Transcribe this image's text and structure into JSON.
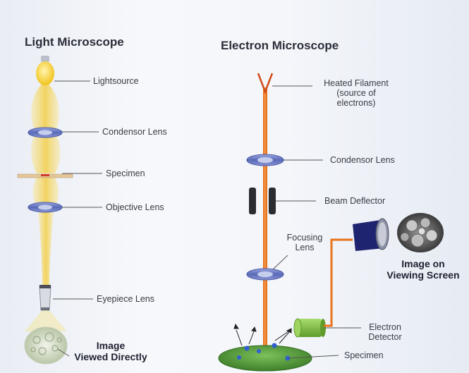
{
  "light": {
    "title": "Light Microscope",
    "lightsource": "Lightsource",
    "condensor": "Condensor Lens",
    "specimen": "Specimen",
    "objective": "Objective Lens",
    "eyepiece": "Eyepiece Lens",
    "image_l1": "Image",
    "image_l2": "Viewed Directly"
  },
  "electron": {
    "title": "Electron Microscope",
    "filament_l1": "Heated Filament",
    "filament_l2": "(source of",
    "filament_l3": "electrons)",
    "condensor": "Condensor Lens",
    "deflector": "Beam Deflector",
    "focusing_l1": "Focusing",
    "focusing_l2": "Lens",
    "screen_l1": "Image on",
    "screen_l2": "Viewing Screen",
    "detector_l1": "Electron",
    "detector_l2": "Detector",
    "specimen": "Specimen"
  },
  "colors": {
    "beam_light": "#f4d86a",
    "beam_electron": "#e8731c",
    "lens": "#6f7fc4",
    "stage": "#4f9a3a",
    "detector": "#7fc043",
    "screen": "#1f2470"
  }
}
